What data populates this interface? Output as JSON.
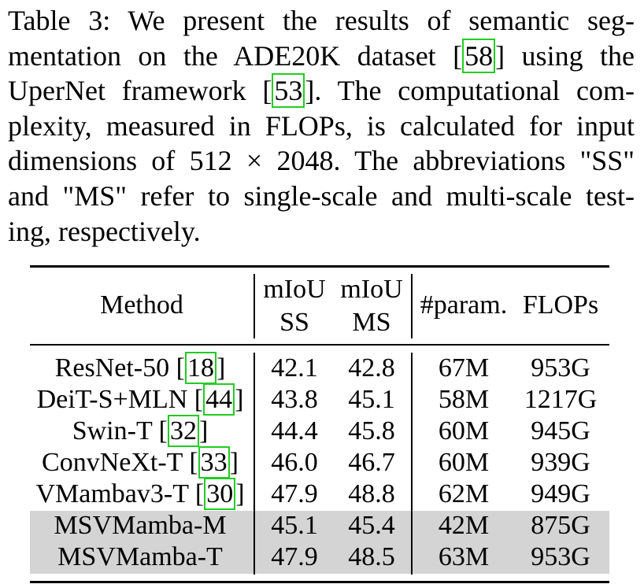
{
  "caption": {
    "line1": "Table 3: We present the results of semantic seg-",
    "line2_pre": "mentation on the ADE20K dataset [",
    "line2_cite": "58",
    "line2_post": "] using the",
    "line3_pre": "UperNet framework [",
    "line3_cite": "53",
    "line3_post": "]. The computational com-",
    "line4": "plexity, measured in FLOPs, is calculated for input",
    "line5": "dimensions of 512 × 2048. The abbreviations \"SS\"",
    "line6": "and \"MS\" refer to single-scale and multi-scale test-",
    "line7": "ing, respectively."
  },
  "table": {
    "headers": {
      "method": "Method",
      "miou_ss_top": "mIoU",
      "miou_ss_bottom": "SS",
      "miou_ms_top": "mIoU",
      "miou_ms_bottom": "MS",
      "params": "#param.",
      "flops": "FLOPs"
    },
    "rows": [
      {
        "method": "ResNet-50 [",
        "cite": "18",
        "close": "]",
        "ss": "42.1",
        "ms": "42.8",
        "params": "67M",
        "flops": "953G"
      },
      {
        "method": "DeiT-S+MLN [",
        "cite": "44",
        "close": "]",
        "ss": "43.8",
        "ms": "45.1",
        "params": "58M",
        "flops": "1217G"
      },
      {
        "method": "Swin-T [",
        "cite": "32",
        "close": "]",
        "ss": "44.4",
        "ms": "45.8",
        "params": "60M",
        "flops": "945G"
      },
      {
        "method": "ConvNeXt-T [",
        "cite": "33",
        "close": "]",
        "ss": "46.0",
        "ms": "46.7",
        "params": "60M",
        "flops": "939G"
      },
      {
        "method": "VMambav3-T [",
        "cite": "30",
        "close": "]",
        "ss": "47.9",
        "ms": "48.8",
        "params": "62M",
        "flops": "949G"
      },
      {
        "method": "MSVMamba-M",
        "ss": "45.1",
        "ms": "45.4",
        "params": "42M",
        "flops": "875G"
      },
      {
        "method": "MSVMamba-T",
        "ss": "47.9",
        "ms": "48.5",
        "params": "63M",
        "flops": "953G"
      }
    ]
  }
}
